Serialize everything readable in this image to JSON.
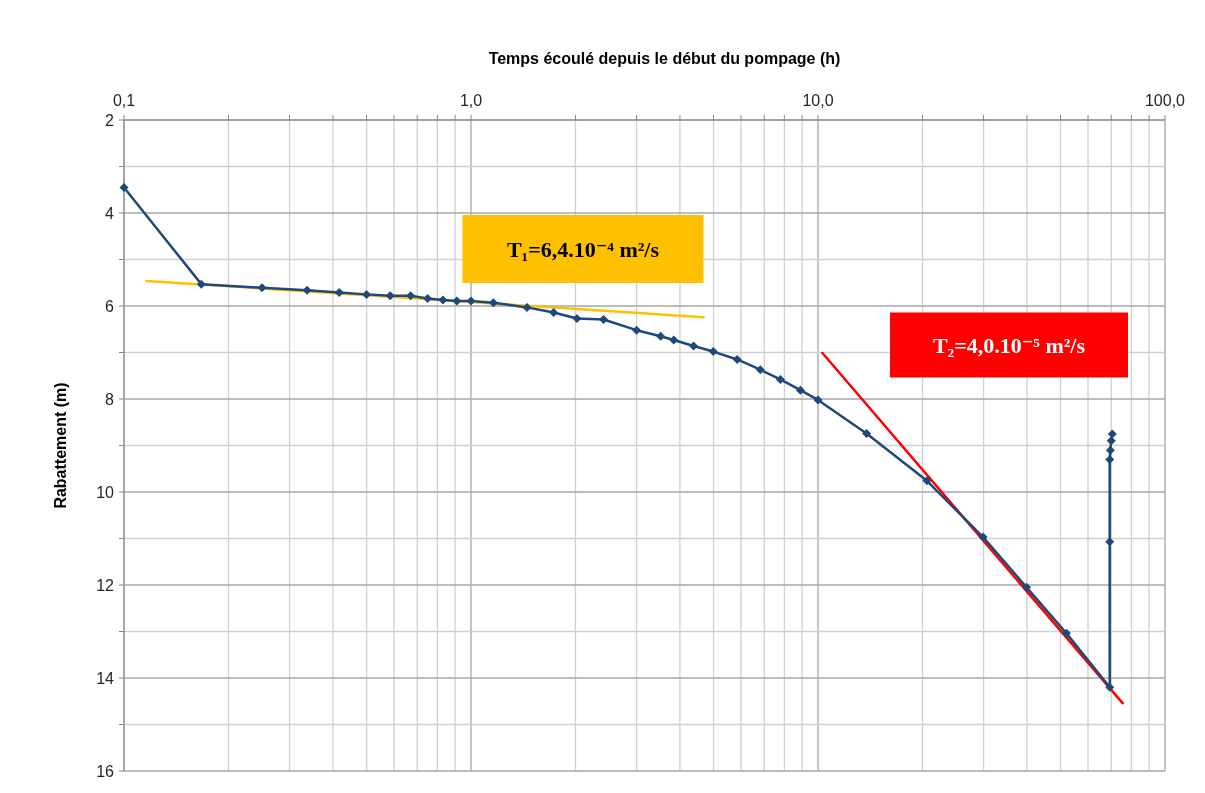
{
  "chart_data": {
    "type": "line",
    "xlabel": "Temps écoulé depuis le début du pompage (h)",
    "ylabel": "Rabattement (m)",
    "log": "x",
    "grid": true,
    "xlim": [
      0.1,
      100
    ],
    "xticks": [
      {
        "value": 0.1,
        "label": "0,1"
      },
      {
        "value": 0.2,
        "label": null
      },
      {
        "value": 0.3,
        "label": null
      },
      {
        "value": 0.4,
        "label": null
      },
      {
        "value": 0.5,
        "label": null
      },
      {
        "value": 0.6,
        "label": null
      },
      {
        "value": 0.7,
        "label": null
      },
      {
        "value": 0.8,
        "label": null
      },
      {
        "value": 0.9,
        "label": null
      },
      {
        "value": 1,
        "label": "1,0"
      },
      {
        "value": 2,
        "label": null
      },
      {
        "value": 3,
        "label": null
      },
      {
        "value": 4,
        "label": null
      },
      {
        "value": 5,
        "label": null
      },
      {
        "value": 6,
        "label": null
      },
      {
        "value": 7,
        "label": null
      },
      {
        "value": 8,
        "label": null
      },
      {
        "value": 9,
        "label": null
      },
      {
        "value": 10,
        "label": "10,0"
      },
      {
        "value": 20,
        "label": null
      },
      {
        "value": 30,
        "label": null
      },
      {
        "value": 40,
        "label": null
      },
      {
        "value": 50,
        "label": null
      },
      {
        "value": 60,
        "label": null
      },
      {
        "value": 70,
        "label": null
      },
      {
        "value": 80,
        "label": null
      },
      {
        "value": 90,
        "label": null
      },
      {
        "value": 100,
        "label": "100,0"
      }
    ],
    "ylim": [
      16,
      2
    ],
    "yticks": [
      2,
      {
        "value": 3,
        "label": null
      },
      4,
      {
        "value": 5,
        "label": null
      },
      6,
      {
        "value": 7,
        "label": null
      },
      8,
      {
        "value": 9,
        "label": null
      },
      10,
      {
        "value": 11,
        "label": null
      },
      12,
      {
        "value": 13,
        "label": null
      },
      14,
      {
        "value": 15,
        "label": null
      },
      16
    ],
    "series": [
      {
        "color": "#1f497d",
        "marker": "diamond",
        "x": [
          0.1,
          0.167,
          0.25,
          0.337,
          0.417,
          0.5,
          0.585,
          0.67,
          0.75,
          0.83,
          0.91,
          1.0,
          1.16,
          1.45,
          1.73,
          2.02,
          2.41,
          3.0,
          3.52,
          3.84,
          4.38,
          4.99,
          5.85,
          6.82,
          7.79,
          8.9,
          10,
          13.8,
          20.6,
          29.9,
          39.9,
          52,
          69.3,
          69.3,
          69.3,
          69.6,
          70.0,
          70.5
        ],
        "values": [
          3.45,
          5.53,
          5.61,
          5.66,
          5.71,
          5.75,
          5.78,
          5.78,
          5.84,
          5.87,
          5.89,
          5.89,
          5.93,
          6.03,
          6.14,
          6.27,
          6.29,
          6.52,
          6.65,
          6.73,
          6.86,
          6.98,
          7.15,
          7.37,
          7.58,
          7.81,
          8.02,
          8.74,
          9.76,
          10.97,
          12.05,
          13.04,
          14.2,
          11.07,
          9.3,
          9.1,
          8.9,
          8.75
        ]
      },
      {
        "color": "#ffc000",
        "marker": "none",
        "x": [
          0.116,
          4.68
        ],
        "values": [
          5.46,
          6.24
        ]
      },
      {
        "color": "#ff0000",
        "marker": "none",
        "x": [
          10.3,
          75.5
        ],
        "values": [
          7.01,
          14.54
        ]
      }
    ],
    "annotations": [
      "T₁=6,4.10⁻⁴ m²/s",
      "T₂=4,0.10⁻⁵ m²/s"
    ]
  }
}
